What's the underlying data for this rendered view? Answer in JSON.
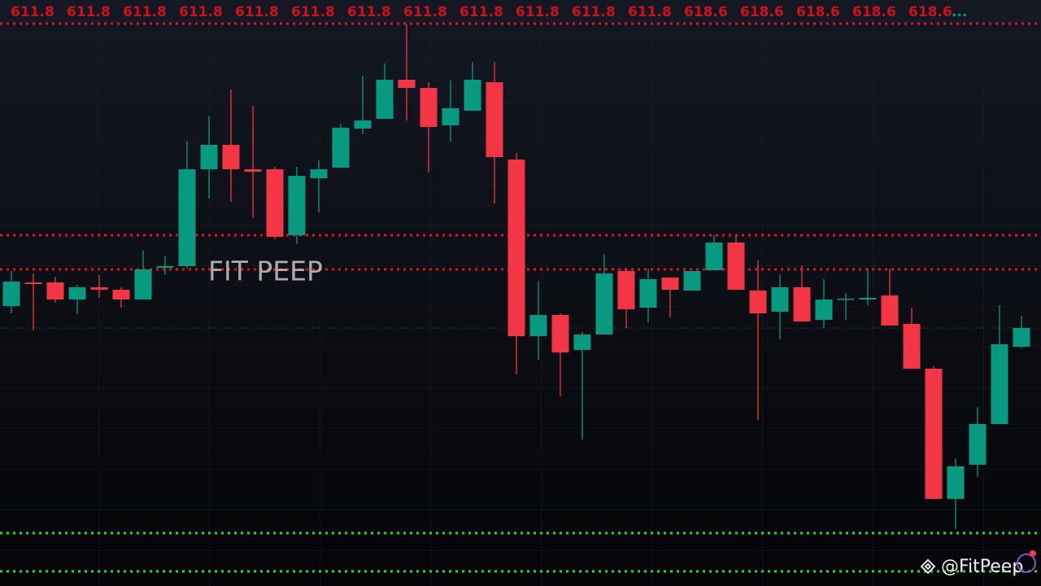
{
  "chart_data": {
    "type": "candlestick",
    "top_labels": [
      "611.8",
      "611.8",
      "611.8",
      "611.8",
      "611.8",
      "611.8",
      "611.8",
      "611.8",
      "611.8",
      "611.8",
      "611.8",
      "611.8",
      "618.6",
      "618.6",
      "618.6",
      "618.6",
      "618.6"
    ],
    "top_labels_more": "...",
    "watermark": "FIT PEEP",
    "credit": "@FitPeep",
    "ylim": [
      0,
      720
    ],
    "up_color": "#089981",
    "down_color": "#f23645",
    "open": [
      344,
      373,
      373,
      352,
      367,
      364,
      352,
      391,
      393,
      512,
      542,
      512,
      512,
      431,
      501,
      514,
      562,
      574,
      622,
      612,
      566,
      584,
      619,
      524,
      307,
      333,
      290,
      309,
      387,
      342,
      379,
      363,
      388,
      422,
      363,
      337,
      367,
      327,
      352,
      352,
      357,
      322,
      267,
      107,
      149,
      199,
      294
    ],
    "high": [
      387,
      384,
      380,
      370,
      382,
      367,
      412,
      405,
      547,
      577,
      610,
      590,
      515,
      515,
      523,
      568,
      627,
      642,
      690,
      619,
      621,
      644,
      644,
      532,
      375,
      335,
      312,
      408,
      390,
      390,
      379,
      387,
      431,
      430,
      400,
      383,
      394,
      377,
      360,
      390,
      390,
      342,
      270,
      157,
      220,
      345,
      332
    ],
    "low": [
      335,
      314,
      348,
      334,
      354,
      342,
      352,
      382,
      390,
      476,
      472,
      452,
      426,
      420,
      459,
      514,
      555,
      574,
      572,
      508,
      546,
      584,
      470,
      260,
      278,
      233,
      180,
      309,
      317,
      324,
      330,
      363,
      388,
      364,
      204,
      303,
      325,
      317,
      327,
      345,
      320,
      267,
      107,
      70,
      134,
      199,
      292
    ],
    "close": [
      374,
      371,
      352,
      367,
      364,
      352,
      389,
      393,
      512,
      542,
      512,
      509,
      429,
      504,
      512,
      563,
      572,
      622,
      612,
      564,
      587,
      622,
      527,
      307,
      333,
      287,
      309,
      384,
      340,
      377,
      364,
      387,
      422,
      364,
      335,
      367,
      325,
      352,
      353,
      354,
      320,
      267,
      107,
      147,
      199,
      297,
      317
    ],
    "levels": [
      {
        "value": 691,
        "color": "#e3141f"
      },
      {
        "value": 431,
        "color": "#e3141f"
      },
      {
        "value": 389,
        "color": "#e3141f"
      },
      {
        "value": 65,
        "color": "#19e619"
      },
      {
        "value": 18,
        "color": "#19e619"
      },
      {
        "value": 317,
        "color": "#1e6f62"
      }
    ]
  }
}
